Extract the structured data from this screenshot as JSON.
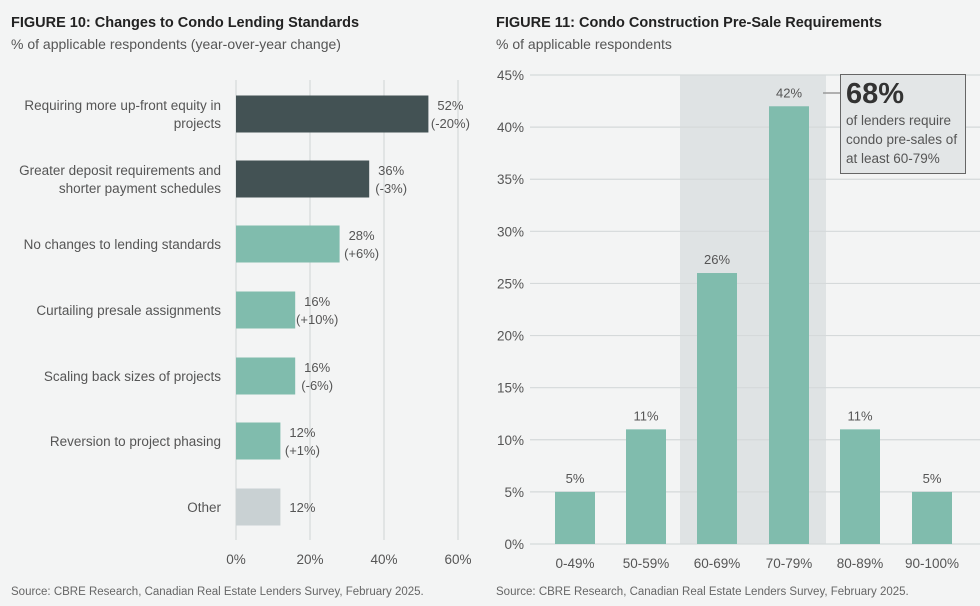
{
  "colors": {
    "dark": "#435254",
    "teal": "#80bcad",
    "gray": "#c9d1d3",
    "shade": "#dfe3e4",
    "grid": "#d5d9da"
  },
  "chart_data": [
    {
      "type": "bar",
      "orientation": "horizontal",
      "title": "FIGURE 10: Changes to Condo Lending Standards",
      "subtitle": "% of applicable respondents (year-over-year change)",
      "categories": [
        [
          "Requiring more up-front equity in",
          "projects"
        ],
        [
          "Greater deposit requirements and",
          "shorter payment schedules"
        ],
        [
          "No changes to lending standards"
        ],
        [
          "Curtailing presale assignments"
        ],
        [
          "Scaling back sizes of projects"
        ],
        [
          "Reversion to project phasing"
        ],
        [
          "Other"
        ]
      ],
      "values": [
        52,
        36,
        28,
        16,
        16,
        12,
        12
      ],
      "labels": [
        "52%",
        "36%",
        "28%",
        "16%",
        "16%",
        "12%",
        "12%"
      ],
      "changes": [
        "(-20%)",
        "(-3%)",
        "(+6%)",
        "(+10%)",
        "(-6%)",
        "(+1%)",
        ""
      ],
      "bar_colors": [
        "dark",
        "dark",
        "teal",
        "teal",
        "teal",
        "teal",
        "gray"
      ],
      "xlim": [
        0,
        60
      ],
      "xticks": [
        "0%",
        "20%",
        "40%",
        "60%"
      ],
      "grid": true,
      "source": "Source: CBRE Research, Canadian Real Estate Lenders Survey, February 2025."
    },
    {
      "type": "bar",
      "title": "FIGURE 11: Condo Construction Pre-Sale Requirements",
      "subtitle": "% of applicable respondents",
      "categories": [
        "0-49%",
        "50-59%",
        "60-69%",
        "70-79%",
        "80-89%",
        "90-100%"
      ],
      "values": [
        5,
        11,
        26,
        42,
        11,
        5
      ],
      "labels": [
        "5%",
        "11%",
        "26%",
        "42%",
        "11%",
        "5%"
      ],
      "ylim": [
        0,
        45
      ],
      "yticks": [
        "0%",
        "5%",
        "10%",
        "15%",
        "20%",
        "25%",
        "30%",
        "35%",
        "40%",
        "45%"
      ],
      "grid": true,
      "highlight_categories": [
        "60-69%",
        "70-79%"
      ],
      "annotation": {
        "value": "68%",
        "text": "of lenders require condo pre-sales of at least 60-79%"
      },
      "source": "Source: CBRE Research, Canadian Real Estate Lenders Survey, February 2025."
    }
  ]
}
